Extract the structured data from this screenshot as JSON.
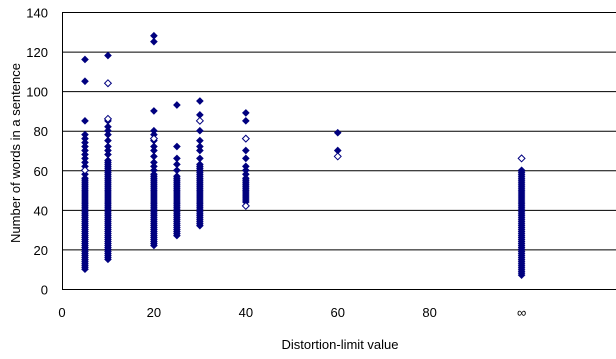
{
  "chart_data": {
    "type": "scatter",
    "title": "",
    "xlabel": "Distortion-limit value",
    "ylabel": "Number of words in a sentence",
    "xlim": [
      0,
      120
    ],
    "ylim": [
      0,
      140
    ],
    "x_ticks": [
      {
        "value": 0,
        "label": "0"
      },
      {
        "value": 20,
        "label": "20"
      },
      {
        "value": 40,
        "label": "40"
      },
      {
        "value": 60,
        "label": "60"
      },
      {
        "value": 80,
        "label": "80"
      },
      {
        "value": 100,
        "label": "∞"
      }
    ],
    "y_ticks": [
      0,
      20,
      40,
      60,
      80,
      100,
      120,
      140
    ],
    "grid": "horizontal",
    "legend": "none",
    "colors": {
      "filled": "#00007f",
      "hollow": "#00007f",
      "hollow_fill": "#ffffff",
      "grid": "#000000"
    },
    "marker": "diamond",
    "series": [
      {
        "marker_fill": "filled",
        "clusters": [
          {
            "x": 5,
            "y_min": 10,
            "y_max": 56,
            "extra": [
              58,
              62,
              64,
              66,
              68,
              70,
              72,
              74,
              76,
              78,
              85,
              105,
              116
            ]
          },
          {
            "x": 10,
            "y_min": 15,
            "y_max": 65,
            "extra": [
              68,
              70,
              72,
              75,
              78,
              80,
              82,
              85,
              118
            ]
          },
          {
            "x": 20,
            "y_min": 22,
            "y_max": 58,
            "extra": [
              60,
              62,
              64,
              67,
              70,
              72,
              75,
              78,
              80,
              90,
              125,
              128
            ]
          },
          {
            "x": 25,
            "y_min": 27,
            "y_max": 57,
            "extra": [
              60,
              63,
              66,
              72,
              93
            ]
          },
          {
            "x": 30,
            "y_min": 32,
            "y_max": 63,
            "extra": [
              66,
              70,
              72,
              75,
              80,
              88,
              95
            ]
          },
          {
            "x": 40,
            "y_min": 44,
            "y_max": 56,
            "extra": [
              58,
              60,
              62,
              66,
              70,
              85,
              89
            ]
          },
          {
            "x": 60,
            "y_min": 70,
            "y_max": 70,
            "extra": [
              79
            ]
          },
          {
            "x": 100,
            "y_min": 7,
            "y_max": 60,
            "extra": []
          }
        ]
      },
      {
        "marker_fill": "hollow",
        "points": [
          {
            "x": 5,
            "y": 60
          },
          {
            "x": 10,
            "y": 104
          },
          {
            "x": 10,
            "y": 86
          },
          {
            "x": 20,
            "y": 76
          },
          {
            "x": 30,
            "y": 85
          },
          {
            "x": 40,
            "y": 76
          },
          {
            "x": 40,
            "y": 42
          },
          {
            "x": 60,
            "y": 67
          },
          {
            "x": 100,
            "y": 66
          }
        ]
      }
    ]
  }
}
